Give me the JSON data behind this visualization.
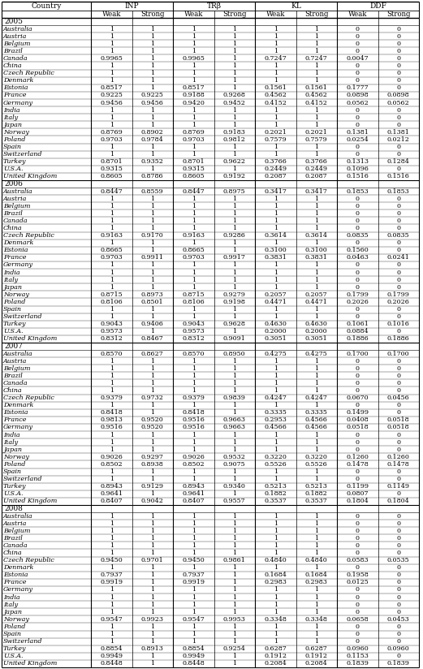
{
  "headers": [
    "Country",
    "INP",
    "TRβ",
    "KL",
    "DDF"
  ],
  "subheaders": [
    "Weak",
    "Strong"
  ],
  "years": [
    "2005",
    "2006",
    "2007",
    "2008"
  ],
  "countries": [
    "Australia",
    "Austria",
    "Belgium",
    "Brazil",
    "Canada",
    "China",
    "Czech Republic",
    "Denmark",
    "Estonia",
    "France",
    "Germany",
    "India",
    "Italy",
    "Japan",
    "Norway",
    "Poland",
    "Spain",
    "Switzerland",
    "Turkey",
    "U.S.A.",
    "United Kingdom"
  ],
  "data": {
    "2005": [
      [
        "1",
        "1",
        "1",
        "1",
        "1",
        "1",
        "0",
        "0"
      ],
      [
        "1",
        "1",
        "1",
        "1",
        "1",
        "1",
        "0",
        "0"
      ],
      [
        "1",
        "1",
        "1",
        "1",
        "1",
        "1",
        "0",
        "0"
      ],
      [
        "1",
        "1",
        "1",
        "1",
        "1",
        "1",
        "0",
        "0"
      ],
      [
        "0.9965",
        "1",
        "0.9965",
        "1",
        "0.7247",
        "0.7247",
        "0.0047",
        "0"
      ],
      [
        "1",
        "1",
        "1",
        "1",
        "1",
        "1",
        "0",
        "0"
      ],
      [
        "1",
        "1",
        "1",
        "1",
        "1",
        "1",
        "0",
        "0"
      ],
      [
        "1",
        "1",
        "1",
        "1",
        "1",
        "1",
        "0",
        "0"
      ],
      [
        "0.8517",
        "1",
        "0.8517",
        "1",
        "0.1561",
        "0.1561",
        "0.1777",
        "0"
      ],
      [
        "0.9225",
        "0.9225",
        "0.9188",
        "0.9268",
        "0.4562",
        "0.4562",
        "0.0898",
        "0.0898"
      ],
      [
        "0.9456",
        "0.9456",
        "0.9420",
        "0.9452",
        "0.4152",
        "0.4152",
        "0.0562",
        "0.0562"
      ],
      [
        "1",
        "1",
        "1",
        "1",
        "1",
        "1",
        "0",
        "0"
      ],
      [
        "1",
        "1",
        "1",
        "1",
        "1",
        "1",
        "0",
        "0"
      ],
      [
        "1",
        "1",
        "1",
        "1",
        "1",
        "1",
        "0",
        "0"
      ],
      [
        "0.8769",
        "0.8902",
        "0.8769",
        "0.9183",
        "0.2021",
        "0.2021",
        "0.1381",
        "0.1381"
      ],
      [
        "0.9703",
        "0.9784",
        "0.9703",
        "0.9812",
        "0.7579",
        "0.7579",
        "0.0254",
        "0.0212"
      ],
      [
        "1",
        "1",
        "1",
        "1",
        "1",
        "1",
        "0",
        "0"
      ],
      [
        "1",
        "1",
        "1",
        "1",
        "1",
        "1",
        "0",
        "0"
      ],
      [
        "0.8701",
        "0.9352",
        "0.8701",
        "0.9622",
        "0.3766",
        "0.3766",
        "0.1313",
        "0.1284"
      ],
      [
        "0.9315",
        "1",
        "0.9315",
        "1",
        "0.2449",
        "0.2449",
        "0.1096",
        "0"
      ],
      [
        "0.8605",
        "0.8786",
        "0.8605",
        "0.9192",
        "0.2087",
        "0.2087",
        "0.1516",
        "0.1516"
      ]
    ],
    "2006": [
      [
        "0.8447",
        "0.8559",
        "0.8447",
        "0.8975",
        "0.3417",
        "0.3417",
        "0.1853",
        "0.1853"
      ],
      [
        "1",
        "1",
        "1",
        "1",
        "1",
        "1",
        "0",
        "0"
      ],
      [
        "1",
        "1",
        "1",
        "1",
        "1",
        "1",
        "0",
        "0"
      ],
      [
        "1",
        "1",
        "1",
        "1",
        "1",
        "1",
        "0",
        "0"
      ],
      [
        "1",
        "1",
        "1",
        "1",
        "1",
        "1",
        "0",
        "0"
      ],
      [
        "1",
        "1",
        "1",
        "1",
        "1",
        "1",
        "0",
        "0"
      ],
      [
        "0.9163",
        "0.9170",
        "0.9163",
        "0.9286",
        "0.3614",
        "0.3614",
        "0.0835",
        "0.0835"
      ],
      [
        "1",
        "1",
        "1",
        "1",
        "1",
        "1",
        "0",
        "0"
      ],
      [
        "0.8665",
        "1",
        "0.8665",
        "1",
        "0.3100",
        "0.3100",
        "0.1560",
        "0"
      ],
      [
        "0.9703",
        "0.9911",
        "0.9703",
        "0.9917",
        "0.3831",
        "0.3831",
        "0.0463",
        "0.0241"
      ],
      [
        "1",
        "1",
        "1",
        "1",
        "1",
        "1",
        "0",
        "0"
      ],
      [
        "1",
        "1",
        "1",
        "1",
        "1",
        "1",
        "0",
        "0"
      ],
      [
        "1",
        "1",
        "1",
        "1",
        "1",
        "1",
        "0",
        "0"
      ],
      [
        "1",
        "1",
        "1",
        "1",
        "1",
        "1",
        "0",
        "0"
      ],
      [
        "0.8715",
        "0.8973",
        "0.8715",
        "0.9279",
        "0.2057",
        "0.2057",
        "0.1799",
        "0.1799"
      ],
      [
        "0.8106",
        "0.8501",
        "0.8106",
        "0.9198",
        "0.4471",
        "0.4471",
        "0.2026",
        "0.2026"
      ],
      [
        "1",
        "1",
        "1",
        "1",
        "1",
        "1",
        "0",
        "0"
      ],
      [
        "1",
        "1",
        "1",
        "1",
        "1",
        "1",
        "0",
        "0"
      ],
      [
        "0.9043",
        "0.9406",
        "0.9043",
        "0.9628",
        "0.4630",
        "0.4630",
        "0.1061",
        "0.1016"
      ],
      [
        "0.9573",
        "1",
        "0.9573",
        "1",
        "0.2000",
        "0.2000",
        "0.0884",
        "0"
      ],
      [
        "0.8312",
        "0.8467",
        "0.8312",
        "0.9091",
        "0.3051",
        "0.3051",
        "0.1886",
        "0.1886"
      ]
    ],
    "2007": [
      [
        "0.8570",
        "0.8627",
        "0.8570",
        "0.8950",
        "0.4275",
        "0.4275",
        "0.1700",
        "0.1700"
      ],
      [
        "1",
        "1",
        "1",
        "1",
        "1",
        "1",
        "0",
        "0"
      ],
      [
        "1",
        "1",
        "1",
        "1",
        "1",
        "1",
        "0",
        "0"
      ],
      [
        "1",
        "1",
        "1",
        "1",
        "1",
        "1",
        "0",
        "0"
      ],
      [
        "1",
        "1",
        "1",
        "1",
        "1",
        "1",
        "0",
        "0"
      ],
      [
        "1",
        "1",
        "1",
        "1",
        "1",
        "1",
        "0",
        "0"
      ],
      [
        "0.9379",
        "0.9732",
        "0.9379",
        "0.9839",
        "0.4247",
        "0.4247",
        "0.0670",
        "0.0456"
      ],
      [
        "1",
        "1",
        "1",
        "1",
        "1",
        "1",
        "0",
        "0"
      ],
      [
        "0.8418",
        "1",
        "0.8418",
        "1",
        "0.3335",
        "0.3335",
        "0.1499",
        "0"
      ],
      [
        "0.9813",
        "0.9520",
        "0.9516",
        "0.9663",
        "0.2953",
        "0.4566",
        "0.0408",
        "0.0518"
      ],
      [
        "0.9516",
        "0.9520",
        "0.9516",
        "0.9663",
        "0.4566",
        "0.4566",
        "0.0518",
        "0.0518"
      ],
      [
        "1",
        "1",
        "1",
        "1",
        "1",
        "1",
        "0",
        "0"
      ],
      [
        "1",
        "1",
        "1",
        "1",
        "1",
        "1",
        "0",
        "0"
      ],
      [
        "1",
        "1",
        "1",
        "1",
        "1",
        "1",
        "0",
        "0"
      ],
      [
        "0.9026",
        "0.9297",
        "0.9026",
        "0.9532",
        "0.3220",
        "0.3220",
        "0.1260",
        "0.1260"
      ],
      [
        "0.8502",
        "0.8938",
        "0.8502",
        "0.9075",
        "0.5526",
        "0.5526",
        "0.1478",
        "0.1478"
      ],
      [
        "1",
        "1",
        "1",
        "1",
        "1",
        "1",
        "0",
        "0"
      ],
      [
        "1",
        "1",
        "1",
        "1",
        "1",
        "1",
        "0",
        "0"
      ],
      [
        "0.8943",
        "0.9129",
        "0.8943",
        "0.9340",
        "0.5213",
        "0.5213",
        "0.1199",
        "0.1149"
      ],
      [
        "0.9641",
        "1",
        "0.9641",
        "1",
        "0.1882",
        "0.1882",
        "0.0807",
        "0"
      ],
      [
        "0.8407",
        "0.9042",
        "0.8407",
        "0.9557",
        "0.3537",
        "0.3537",
        "0.1804",
        "0.1804"
      ]
    ],
    "2008": [
      [
        "1",
        "1",
        "1",
        "1",
        "1",
        "1",
        "0",
        "0"
      ],
      [
        "1",
        "1",
        "1",
        "1",
        "1",
        "1",
        "0",
        "0"
      ],
      [
        "1",
        "1",
        "1",
        "1",
        "1",
        "1",
        "0",
        "0"
      ],
      [
        "1",
        "1",
        "1",
        "1",
        "1",
        "1",
        "0",
        "0"
      ],
      [
        "1",
        "1",
        "1",
        "1",
        "1",
        "1",
        "0",
        "0"
      ],
      [
        "1",
        "1",
        "1",
        "1",
        "1",
        "1",
        "0",
        "0"
      ],
      [
        "0.9450",
        "0.9701",
        "0.9450",
        "0.9861",
        "0.4840",
        "0.4840",
        "0.0583",
        "0.0535"
      ],
      [
        "1",
        "1",
        "1",
        "1",
        "1",
        "1",
        "0",
        "0"
      ],
      [
        "0.7937",
        "1",
        "0.7937",
        "1",
        "0.1684",
        "0.1684",
        "0.1958",
        "0"
      ],
      [
        "0.9919",
        "1",
        "0.9919",
        "1",
        "0.2983",
        "0.2983",
        "0.0125",
        "0"
      ],
      [
        "1",
        "1",
        "1",
        "1",
        "1",
        "1",
        "0",
        "0"
      ],
      [
        "1",
        "1",
        "1",
        "1",
        "1",
        "1",
        "0",
        "0"
      ],
      [
        "1",
        "1",
        "1",
        "1",
        "1",
        "1",
        "0",
        "0"
      ],
      [
        "1",
        "1",
        "1",
        "1",
        "1",
        "1",
        "0",
        "0"
      ],
      [
        "0.9547",
        "0.9923",
        "0.9547",
        "0.9953",
        "0.3348",
        "0.3348",
        "0.0658",
        "0.0453"
      ],
      [
        "1",
        "1",
        "1",
        "1",
        "1",
        "1",
        "0",
        "0"
      ],
      [
        "1",
        "1",
        "1",
        "1",
        "1",
        "1",
        "0",
        "0"
      ],
      [
        "1",
        "1",
        "1",
        "1",
        "1",
        "1",
        "0",
        "0"
      ],
      [
        "0.8854",
        "0.8913",
        "0.8854",
        "0.9254",
        "0.6287",
        "0.6287",
        "0.0960",
        "0.0960"
      ],
      [
        "0.9949",
        "1",
        "0.9949",
        "1",
        "0.1912",
        "0.1912",
        "0.1153",
        "0"
      ],
      [
        "0.8448",
        "1",
        "0.8448",
        "1",
        "0.2084",
        "0.2084",
        "0.1839",
        "0.1839"
      ]
    ]
  }
}
